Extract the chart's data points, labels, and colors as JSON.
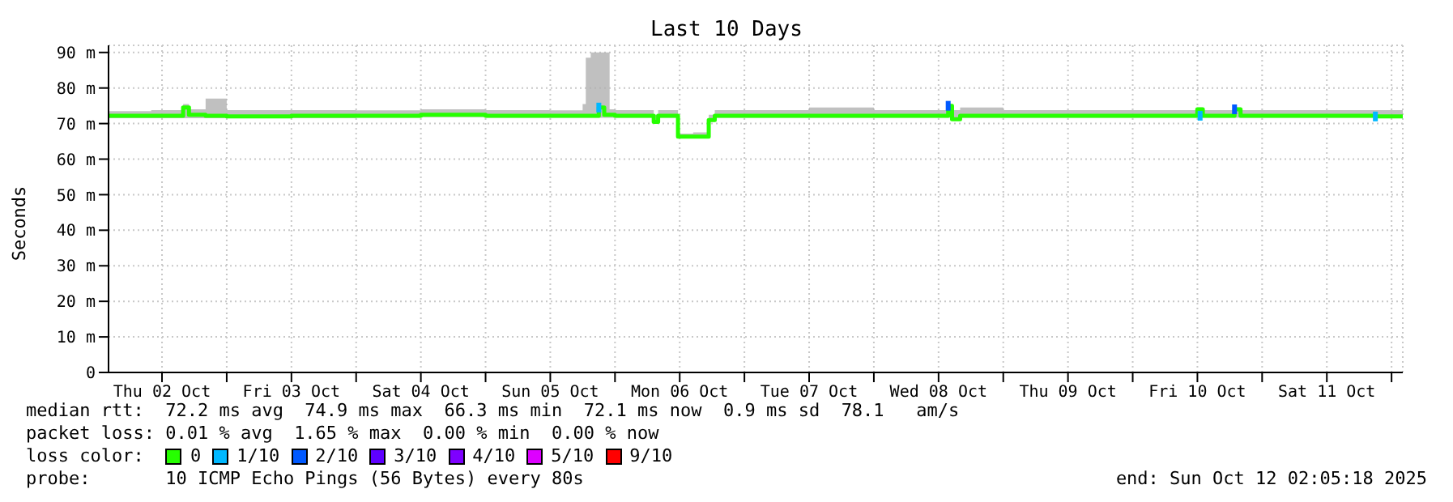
{
  "chart_data": {
    "type": "line",
    "title": "Last 10 Days",
    "ylabel": "Seconds",
    "legend_title": "loss color:",
    "legend": "bottom",
    "grid": true,
    "xlim": [
      "2025-10-02T02:05",
      "2025-10-12T02:05"
    ],
    "xticks": [
      {
        "value": "2025-10-02T12:00",
        "label": "Thu 02 Oct"
      },
      {
        "value": "2025-10-03T00:00",
        "label": null
      },
      {
        "value": "2025-10-03T12:00",
        "label": "Fri 03 Oct"
      },
      {
        "value": "2025-10-04T00:00",
        "label": null
      },
      {
        "value": "2025-10-04T12:00",
        "label": "Sat 04 Oct"
      },
      {
        "value": "2025-10-05T00:00",
        "label": null
      },
      {
        "value": "2025-10-05T12:00",
        "label": "Sun 05 Oct"
      },
      {
        "value": "2025-10-06T00:00",
        "label": null
      },
      {
        "value": "2025-10-06T12:00",
        "label": "Mon 06 Oct"
      },
      {
        "value": "2025-10-07T00:00",
        "label": null
      },
      {
        "value": "2025-10-07T12:00",
        "label": "Tue 07 Oct"
      },
      {
        "value": "2025-10-08T00:00",
        "label": null
      },
      {
        "value": "2025-10-08T12:00",
        "label": "Wed 08 Oct"
      },
      {
        "value": "2025-10-09T00:00",
        "label": null
      },
      {
        "value": "2025-10-09T12:00",
        "label": "Thu 09 Oct"
      },
      {
        "value": "2025-10-10T00:00",
        "label": null
      },
      {
        "value": "2025-10-10T12:00",
        "label": "Fri 10 Oct"
      },
      {
        "value": "2025-10-11T00:00",
        "label": null
      },
      {
        "value": "2025-10-11T12:00",
        "label": "Sat 11 Oct"
      },
      {
        "value": "2025-10-12T00:00",
        "label": null
      }
    ],
    "ylim": [
      0,
      92
    ],
    "yticks": [
      0,
      {
        "value": 10,
        "label": "10 m"
      },
      {
        "value": 20,
        "label": "20 m"
      },
      {
        "value": 30,
        "label": "30 m"
      },
      {
        "value": 40,
        "label": "40 m"
      },
      {
        "value": 50,
        "label": "50 m"
      },
      {
        "value": 60,
        "label": "60 m"
      },
      {
        "value": 70,
        "label": "70 m"
      },
      {
        "value": 80,
        "label": "80 m"
      },
      {
        "value": 90,
        "label": "90 m"
      }
    ],
    "series": [
      {
        "name": "0",
        "type": "step",
        "color": "#26ff00",
        "x": [
          "2025-10-02T02:05",
          "2025-10-02T10:00",
          "2025-10-02T15:55",
          "2025-10-02T17:00",
          "2025-10-02T20:05",
          "2025-10-03T00:00",
          "2025-10-03T12:00",
          "2025-10-04T00:00",
          "2025-10-04T12:00",
          "2025-10-05T00:00",
          "2025-10-05T12:00",
          "2025-10-05T18:00",
          "2025-10-05T18:35",
          "2025-10-05T19:30",
          "2025-10-05T21:00",
          "2025-10-05T22:00",
          "2025-10-05T23:00",
          "2025-10-06T00:00",
          "2025-10-06T07:11",
          "2025-10-06T08:00",
          "2025-10-06T11:41",
          "2025-10-06T14:30",
          "2025-10-06T17:23",
          "2025-10-06T18:30",
          "2025-10-07T00:00",
          "2025-10-07T12:00",
          "2025-10-08T00:00",
          "2025-10-08T13:47",
          "2025-10-08T14:30",
          "2025-10-08T16:00",
          "2025-10-09T00:00",
          "2025-10-09T12:00",
          "2025-10-10T00:00",
          "2025-10-10T11:59",
          "2025-10-10T13:00",
          "2025-10-10T18:53",
          "2025-10-10T20:00",
          "2025-10-11T00:00",
          "2025-10-11T12:00",
          "2025-10-11T21:00",
          "2025-10-12T02:05"
        ],
        "values": [
          72.2,
          72.2,
          74.5,
          72.5,
          72.2,
          72,
          72.2,
          72.2,
          72.5,
          72.2,
          72.2,
          72.2,
          72.2,
          72.2,
          74.5,
          72.5,
          72.5,
          72.2,
          70.5,
          72.2,
          66.3,
          66.3,
          71,
          72.2,
          72.2,
          72.2,
          72.2,
          75,
          71.2,
          72.2,
          72.2,
          72.2,
          72.2,
          74,
          72.2,
          74,
          72.2,
          72.2,
          72.2,
          72,
          72.2
        ],
        "lower": [
          71.5,
          71.5,
          71.5,
          71.5,
          71.5,
          71.5,
          71.5,
          71.6,
          71.8,
          71.6,
          71.6,
          71.6,
          71.6,
          71.6,
          71.6,
          71.6,
          71.6,
          71.6,
          70,
          71.6,
          66,
          66,
          70.5,
          71.6,
          71.6,
          71.6,
          71.6,
          71.6,
          70.8,
          71.6,
          71.6,
          71.6,
          71.6,
          71.6,
          71.6,
          71.6,
          71.6,
          71.6,
          71.6,
          71.5,
          71.6
        ],
        "upper": [
          73.5,
          73.8,
          75.5,
          74,
          77,
          73.8,
          73.8,
          73.7,
          74,
          73.8,
          73.7,
          75.5,
          88.5,
          90,
          90,
          90,
          74,
          73.8,
          72.5,
          73.8,
          67.2,
          67.5,
          72.5,
          73.8,
          73.8,
          74.5,
          73.8,
          75.5,
          73.8,
          74.5,
          73.8,
          73.8,
          73.8,
          74.5,
          73.8,
          74.5,
          73.8,
          73.8,
          73.8,
          73.8,
          73.8
        ]
      },
      {
        "name": "1/10",
        "type": "scatter",
        "color": "#00b8ff",
        "x": [
          "2025-10-05T21:00",
          "2025-10-10T12:30",
          "2025-10-11T21:00"
        ],
        "values": [
          74.5,
          72.2,
          72
        ]
      },
      {
        "name": "2/10",
        "type": "scatter",
        "color": "#0059ff",
        "x": [
          "2025-10-08T13:47",
          "2025-10-10T18:53"
        ],
        "values": [
          75,
          74
        ]
      },
      {
        "name": "3/10",
        "type": "scatter",
        "color": "#5e00ff"
      },
      {
        "name": "4/10",
        "type": "scatter",
        "color": "#7e00ff"
      },
      {
        "name": "5/10",
        "type": "scatter",
        "color": "#dd00ff"
      },
      {
        "name": "9/10",
        "type": "scatter",
        "color": "#ff0000"
      }
    ],
    "annotations": [
      "median rtt:  72.2 ms avg  74.9 ms max  66.3 ms min  72.1 ms now  0.9 ms sd  78.1   am/s",
      "packet loss: 0.01 % avg  1.65 % max  0.00 % min  0.00 % now",
      "probe:       10 ICMP Echo Pings (56 Bytes) every 80s",
      "end: Sun Oct 12 02:05:18 2025"
    ]
  }
}
